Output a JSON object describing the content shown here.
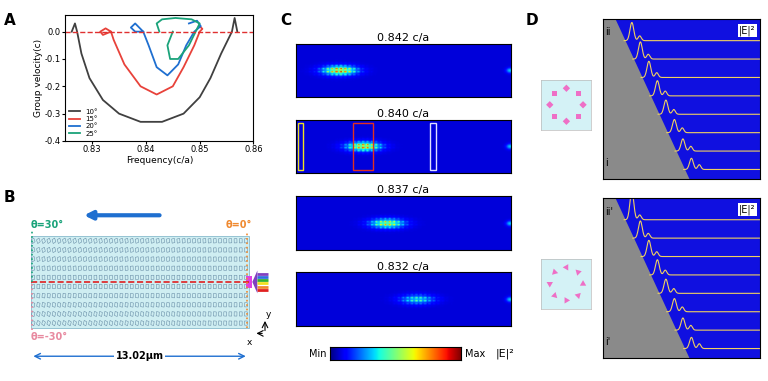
{
  "panel_labels": [
    "A",
    "B",
    "C",
    "D"
  ],
  "chart_data": {
    "type": "line",
    "xlabel": "Frequency(c/a)",
    "ylabel": "Group velocity(c)",
    "xlim": [
      0.825,
      0.86
    ],
    "xticks": [
      0.83,
      0.84,
      0.85,
      0.86
    ],
    "ylim": [
      -0.4,
      0.06
    ],
    "yticks": [
      -0.4,
      -0.3,
      -0.2,
      -0.1,
      0.0
    ],
    "reference_y": 0.0,
    "legend": "lower left",
    "series": [
      {
        "name": "10°",
        "color": "#404040",
        "x": [
          0.8262,
          0.8268,
          0.8272,
          0.828,
          0.8295,
          0.832,
          0.835,
          0.839,
          0.843,
          0.847,
          0.85,
          0.852,
          0.854,
          0.8555,
          0.856,
          0.8565,
          0.857
        ],
        "values": [
          0.0,
          0.03,
          0.0,
          -0.08,
          -0.17,
          -0.25,
          -0.3,
          -0.33,
          -0.33,
          -0.3,
          -0.24,
          -0.17,
          -0.08,
          -0.02,
          0.0,
          0.05,
          0.0
        ]
      },
      {
        "name": "15°",
        "color": "#e8423a",
        "x": [
          0.8335,
          0.8325,
          0.8315,
          0.832,
          0.8335,
          0.834,
          0.836,
          0.839,
          0.842,
          0.845,
          0.847,
          0.849,
          0.85,
          0.8505,
          0.85
        ],
        "values": [
          0.0,
          0.012,
          0.0,
          -0.012,
          0.0,
          -0.03,
          -0.12,
          -0.2,
          -0.23,
          -0.2,
          -0.13,
          -0.05,
          0.0,
          0.01,
          0.02
        ]
      },
      {
        "name": "20°",
        "color": "#1f6fd0",
        "x": [
          0.8395,
          0.838,
          0.8372,
          0.838,
          0.8395,
          0.8405,
          0.842,
          0.844,
          0.846,
          0.8475,
          0.849,
          0.8502,
          0.8495,
          0.848
        ],
        "values": [
          0.0,
          0.03,
          0.015,
          0.0,
          0.0,
          -0.05,
          -0.13,
          -0.16,
          -0.12,
          -0.05,
          0.0,
          0.02,
          0.04,
          0.03
        ]
      },
      {
        "name": "25°",
        "color": "#1aa37a",
        "x": [
          0.8425,
          0.842,
          0.843,
          0.8455,
          0.8485,
          0.85,
          0.8495,
          0.848,
          0.846,
          0.8445,
          0.844,
          0.845
        ],
        "values": [
          0.0,
          0.03,
          0.045,
          0.05,
          0.045,
          0.03,
          0.01,
          -0.05,
          -0.1,
          -0.1,
          -0.05,
          0.0
        ]
      }
    ]
  },
  "panel_B": {
    "angle_top": "θ=30°",
    "angle_right": "θ=0°",
    "angle_bottom": "θ=-30°",
    "length": "13.02μm",
    "axis_x": "x",
    "axis_y": "y"
  },
  "panel_C": {
    "titles": [
      "0.842 c/a",
      "0.840 c/a",
      "0.837 c/a",
      "0.832 c/a"
    ],
    "colorbar": {
      "min": "Min",
      "max": "Max",
      "label": "|E|²"
    }
  },
  "panel_D": {
    "label": "|E|²",
    "upper_panel": {
      "top_trace": "ii",
      "bottom_trace": "i"
    },
    "lower_panel": {
      "top_trace": "ii'",
      "bottom_trace": "i'"
    }
  }
}
